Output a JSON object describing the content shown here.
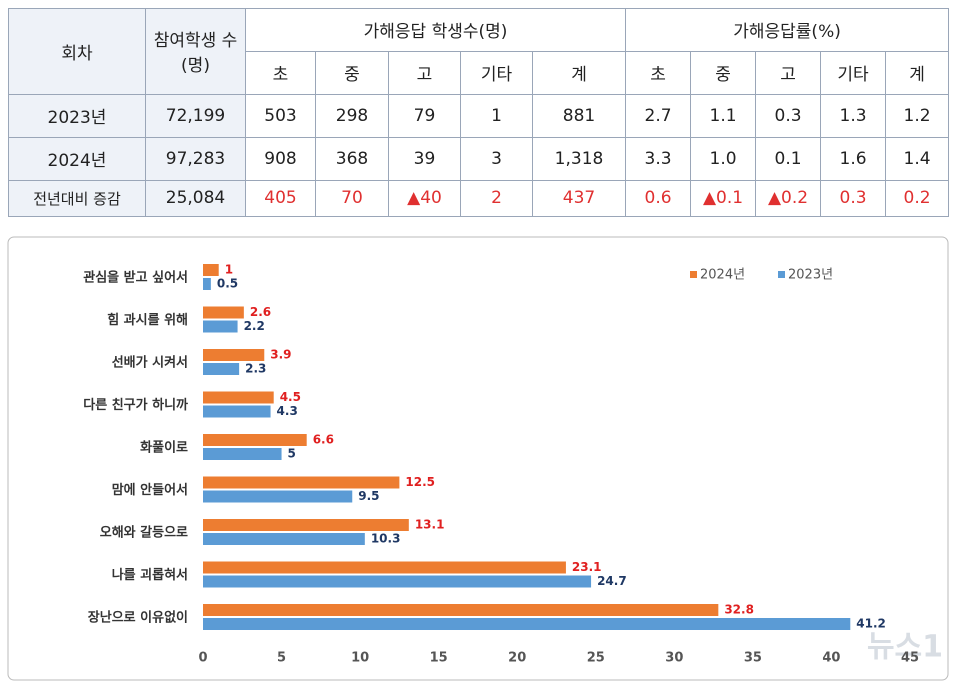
{
  "table": {
    "header": {
      "round": "회차",
      "participants": "참여학생 수(명)",
      "groups": [
        "가해응답 학생수(명)",
        "가해응답률(%)"
      ],
      "subheaders": [
        "초",
        "중",
        "고",
        "기타",
        "계",
        "초",
        "중",
        "고",
        "기타",
        "계"
      ]
    },
    "rows": [
      [
        "2023년",
        "72,199",
        "503",
        "298",
        "79",
        "1",
        "881",
        "2.7",
        "1.1",
        "0.3",
        "1.3",
        "1.2"
      ],
      [
        "2024년",
        "97,283",
        "908",
        "368",
        "39",
        "3",
        "1,318",
        "3.3",
        "1.0",
        "0.1",
        "1.6",
        "1.4"
      ],
      [
        "전년대비 증감",
        "25,084",
        "405",
        "70",
        "▲40",
        "2",
        "437",
        "0.6",
        "▲0.1",
        "▲0.2",
        "0.3",
        "0.2"
      ]
    ]
  },
  "chart_data": {
    "type": "hbar",
    "categories": [
      "관심을 받고 싶어서",
      "힘 과시를 위해",
      "선배가 시켜서",
      "다른 친구가 하니까",
      "화풀이로",
      "맘에 안들어서",
      "오해와 갈등으로",
      "나를 괴롭혀서",
      "장난으로 이유없이"
    ],
    "series": [
      {
        "name": "2024년",
        "color": "#ed7d31",
        "label_color": "#e02020",
        "values": [
          1,
          2.6,
          3.9,
          4.5,
          6.6,
          12.5,
          13.1,
          23.1,
          32.8
        ]
      },
      {
        "name": "2023년",
        "color": "#5b9bd5",
        "label_color": "#1f3864",
        "values": [
          0.5,
          2.2,
          2.3,
          4.3,
          5,
          9.5,
          10.3,
          24.7,
          41.2
        ]
      }
    ],
    "xlim": [
      0,
      45
    ],
    "xticks": [
      0,
      5,
      10,
      15,
      20,
      25,
      30,
      35,
      40,
      45
    ],
    "legend": "top-right"
  },
  "watermark": "뉴스1"
}
